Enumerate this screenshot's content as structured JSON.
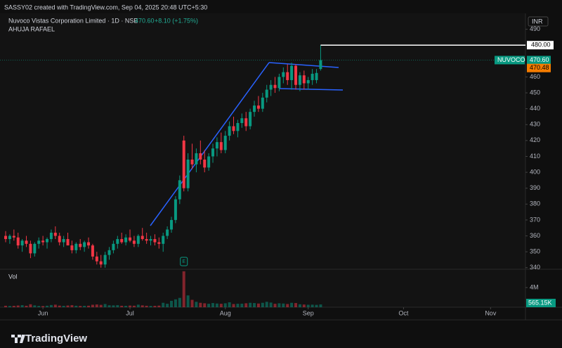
{
  "chart_data": {
    "type": "candlestick",
    "credit": "SASSY02 created with TradingView.com, Sep 04, 2025 20:48 UTC+5:30",
    "symbol_line": "Nuvoco Vistas Corporation Limited · 1D · NSE",
    "header_price": "470.60",
    "header_change": "+8.10 (+1.75%)",
    "author": "AHUJA RAFAEL",
    "currency": "INR",
    "ticker": "NUVOCO",
    "last_price": {
      "value": 470.6,
      "label": "470.60"
    },
    "second_price": {
      "value": 470.48,
      "label": "470.48"
    },
    "hline": {
      "value": 480,
      "label": "480.00"
    },
    "event_marker": "E",
    "brand": "TradingView",
    "up_color": "#089981",
    "down_color": "#f23645",
    "xlim": [
      -1.36,
      125.42
    ],
    "xticks": [
      {
        "value": 9,
        "label": "Jun"
      },
      {
        "value": 30,
        "label": "Jul"
      },
      {
        "value": 53,
        "label": "Aug"
      },
      {
        "value": 73,
        "label": "Sep"
      },
      {
        "value": 96,
        "label": "Oct"
      },
      {
        "value": 117,
        "label": "Nov"
      }
    ],
    "ylim": [
      339,
      500
    ],
    "yticks": [
      340,
      350,
      360,
      370,
      380,
      390,
      400,
      410,
      420,
      430,
      440,
      450,
      460,
      490
    ],
    "open": [
      360,
      358,
      360,
      359,
      354,
      357,
      355,
      349,
      355,
      357,
      356,
      358,
      362,
      360,
      356,
      358,
      354,
      351,
      355,
      353,
      356,
      354,
      347,
      344,
      342,
      348,
      351,
      355,
      358,
      356,
      359,
      357,
      355,
      360,
      358,
      357,
      358,
      356,
      355,
      360,
      364,
      370,
      383,
      420,
      390,
      408,
      405,
      412,
      408,
      403,
      410,
      415,
      419,
      414,
      423,
      429,
      426,
      431,
      434,
      429,
      438,
      442,
      440,
      447,
      452,
      455,
      453,
      460,
      463,
      458,
      467,
      455,
      461,
      456,
      458,
      458,
      465
    ],
    "high": [
      363,
      361,
      364,
      362,
      358,
      360,
      357,
      356,
      359,
      360,
      359,
      364,
      366,
      362,
      360,
      362,
      357,
      356,
      358,
      357,
      359,
      355,
      350,
      348,
      350,
      353,
      357,
      360,
      362,
      361,
      364,
      360,
      361,
      365,
      362,
      360,
      361,
      359,
      362,
      366,
      372,
      385,
      398,
      423,
      412,
      418,
      415,
      420,
      414,
      412,
      418,
      422,
      425,
      426,
      432,
      435,
      433,
      437,
      438,
      440,
      445,
      448,
      450,
      455,
      458,
      460,
      462,
      466,
      468,
      469,
      468,
      463,
      464,
      460,
      465,
      465,
      480
    ],
    "low": [
      356,
      355,
      357,
      352,
      350,
      353,
      346,
      347,
      352,
      354,
      352,
      356,
      358,
      354,
      353,
      355,
      349,
      349,
      351,
      350,
      352,
      345,
      342,
      340,
      340,
      345,
      349,
      352,
      355,
      354,
      356,
      353,
      353,
      357,
      355,
      354,
      354,
      352,
      350,
      358,
      362,
      368,
      380,
      388,
      388,
      402,
      400,
      405,
      400,
      401,
      406,
      410,
      412,
      412,
      420,
      424,
      422,
      428,
      426,
      427,
      435,
      438,
      438,
      444,
      448,
      450,
      451,
      456,
      455,
      452,
      452,
      451,
      452,
      452,
      455,
      456,
      464
    ],
    "close": [
      358,
      360,
      359,
      354,
      357,
      355,
      349,
      355,
      357,
      356,
      358,
      362,
      360,
      356,
      358,
      354,
      351,
      355,
      353,
      356,
      354,
      347,
      344,
      342,
      348,
      351,
      355,
      358,
      356,
      359,
      357,
      355,
      360,
      358,
      357,
      358,
      356,
      355,
      360,
      364,
      370,
      383,
      395,
      390,
      408,
      405,
      412,
      408,
      403,
      410,
      415,
      419,
      414,
      423,
      429,
      426,
      431,
      434,
      429,
      438,
      442,
      440,
      447,
      452,
      455,
      453,
      460,
      463,
      458,
      467,
      455,
      461,
      456,
      458,
      462,
      462.5,
      470.6
    ],
    "volume": {
      "name": "Vol",
      "values": [
        300000,
        250000,
        280000,
        350000,
        420000,
        300000,
        600000,
        380000,
        260000,
        240000,
        300000,
        450000,
        520000,
        330000,
        280000,
        350000,
        420000,
        300000,
        260000,
        280000,
        310000,
        500000,
        560000,
        480000,
        650000,
        400000,
        380000,
        420000,
        300000,
        280000,
        340000,
        310000,
        520000,
        380000,
        300000,
        260000,
        280000,
        330000,
        900000,
        700000,
        1300000,
        1600000,
        1900000,
        7300000,
        2400000,
        1500000,
        1100000,
        900000,
        800000,
        700000,
        850000,
        750000,
        700000,
        800000,
        1000000,
        650000,
        700000,
        720000,
        800000,
        900000,
        850000,
        750000,
        900000,
        1100000,
        950000,
        700000,
        800000,
        750000,
        650000,
        900000,
        850000,
        600000,
        550000,
        500000,
        520000,
        480000,
        565150
      ],
      "last_label": "565.15K",
      "ylim": [
        0,
        7430000
      ],
      "yticks": [
        {
          "value": 4000000,
          "label": "4M"
        }
      ]
    }
  }
}
